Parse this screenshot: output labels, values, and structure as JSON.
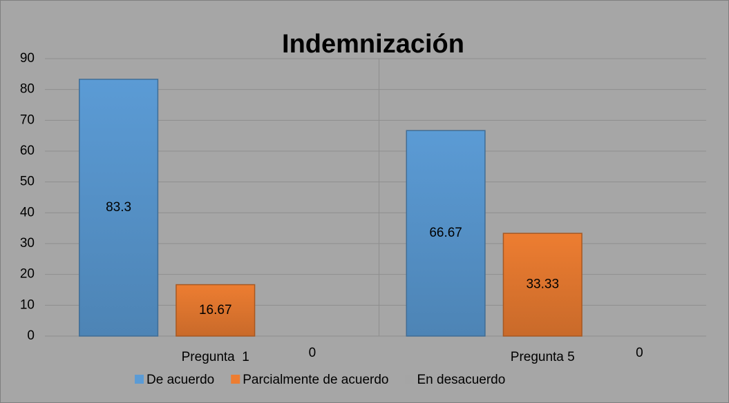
{
  "chart_data": {
    "type": "bar",
    "title": "Indemnización",
    "categories": [
      "Pregunta  1",
      "Pregunta 5"
    ],
    "series": [
      {
        "name": "De acuerdo",
        "color": "#5b9bd5",
        "values": [
          83.3,
          66.67
        ]
      },
      {
        "name": "Parcialmente de acuerdo",
        "color": "#ed7d31",
        "values": [
          16.67,
          33.33
        ]
      },
      {
        "name": "En desacuerdo",
        "color": "#a5a5a5",
        "values": [
          0,
          0
        ]
      }
    ],
    "ylim": [
      0,
      90
    ],
    "yticks": [
      0,
      10,
      20,
      30,
      40,
      50,
      60,
      70,
      80,
      90
    ],
    "grid": true,
    "legend": "bottom"
  }
}
